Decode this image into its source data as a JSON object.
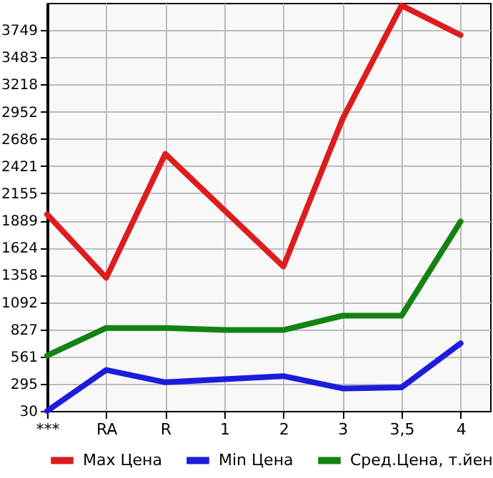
{
  "chart_data": {
    "type": "line",
    "categories": [
      "***",
      "RA",
      "R",
      "1",
      "2",
      "3",
      "3,5",
      "4"
    ],
    "series": [
      {
        "name": "Max Цена",
        "color": "#dd1c1c",
        "values": [
          1950,
          1330,
          2540,
          1990,
          1440,
          2880,
          3990,
          3700
        ]
      },
      {
        "name": "Min Цена",
        "color": "#1c1cdd",
        "values": [
          30,
          430,
          310,
          340,
          370,
          250,
          260,
          690
        ]
      },
      {
        "name": "Сред.Цена, т.йен",
        "color": "#128212",
        "values": [
          570,
          840,
          840,
          820,
          820,
          960,
          960,
          1880
        ]
      }
    ],
    "ylim": [
      30,
      4015
    ],
    "yticks": [
      30,
      295,
      561,
      827,
      1092,
      1358,
      1624,
      1889,
      2155,
      2421,
      2686,
      2952,
      3218,
      3483,
      3749
    ],
    "grid": true,
    "legend": "bottom"
  }
}
